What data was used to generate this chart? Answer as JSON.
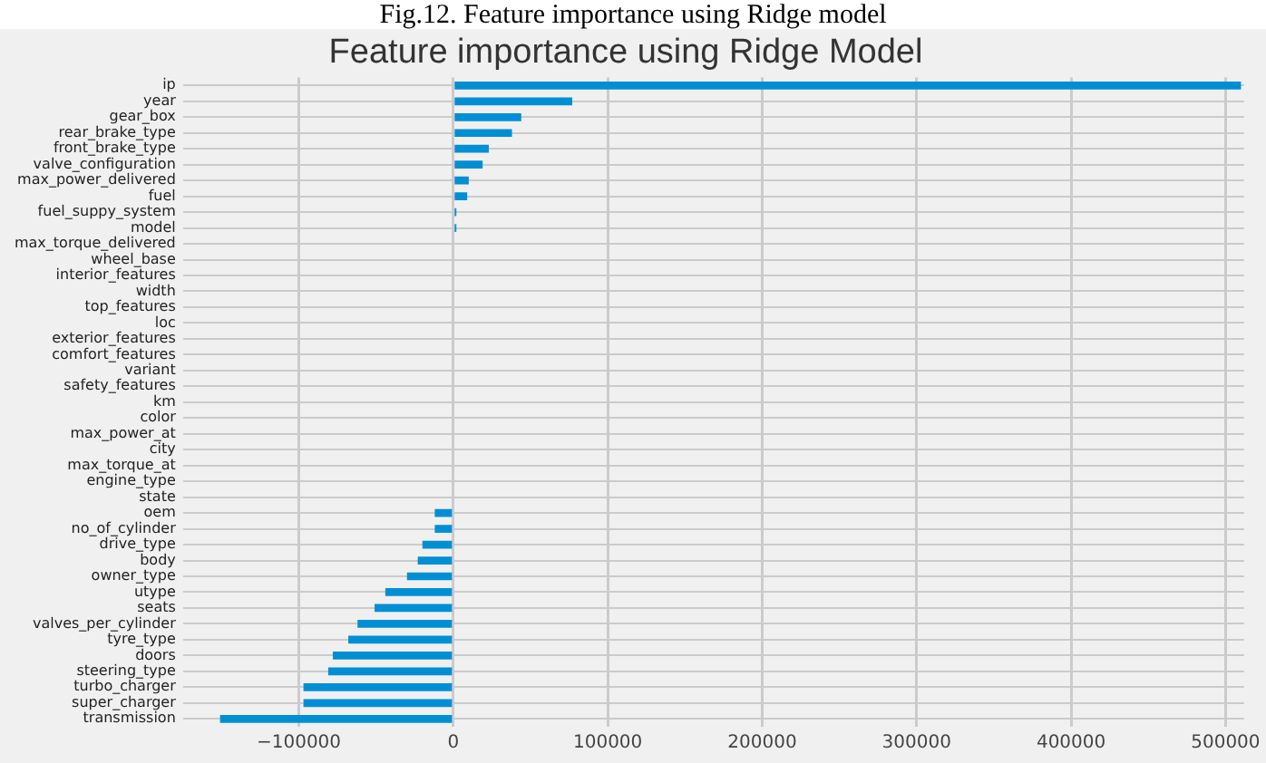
{
  "chart_data": {
    "type": "bar",
    "orientation": "horizontal",
    "title": "Feature importance using Ridge Model",
    "annotations": [
      "Fig.12. Feature importance using Ridge model"
    ],
    "categories": [
      "ip",
      "year",
      "gear_box",
      "rear_brake_type",
      "front_brake_type",
      "valve_configuration",
      "max_power_delivered",
      "fuel",
      "fuel_suppy_system",
      "model",
      "max_torque_delivered",
      "wheel_base",
      "interior_features",
      "width",
      "top_features",
      "loc",
      "exterior_features",
      "comfort_features",
      "variant",
      "safety_features",
      "km",
      "color",
      "max_power_at",
      "city",
      "max_torque_at",
      "engine_type",
      "state",
      "oem",
      "no_of_cylinder",
      "drive_type",
      "body",
      "owner_type",
      "utype",
      "seats",
      "valves_per_cylinder",
      "tyre_type",
      "doors",
      "steering_type",
      "turbo_charger",
      "super_charger",
      "transmission"
    ],
    "values": [
      510000,
      77000,
      44000,
      38000,
      23000,
      19000,
      10000,
      9000,
      2000,
      2000,
      0,
      0,
      0,
      0,
      0,
      0,
      0,
      0,
      0,
      0,
      0,
      0,
      0,
      0,
      0,
      0,
      0,
      -12000,
      -12000,
      -20000,
      -23000,
      -30000,
      -44000,
      -51000,
      -62000,
      -68000,
      -78000,
      -81000,
      -97000,
      -97000,
      -151000
    ],
    "color": "#008fd5",
    "xlim": [
      -175000,
      512000
    ],
    "xticks": [
      {
        "value": -100000,
        "label": "−100000"
      },
      0,
      100000,
      200000,
      300000,
      400000,
      500000
    ],
    "grid": true,
    "legend": false
  }
}
